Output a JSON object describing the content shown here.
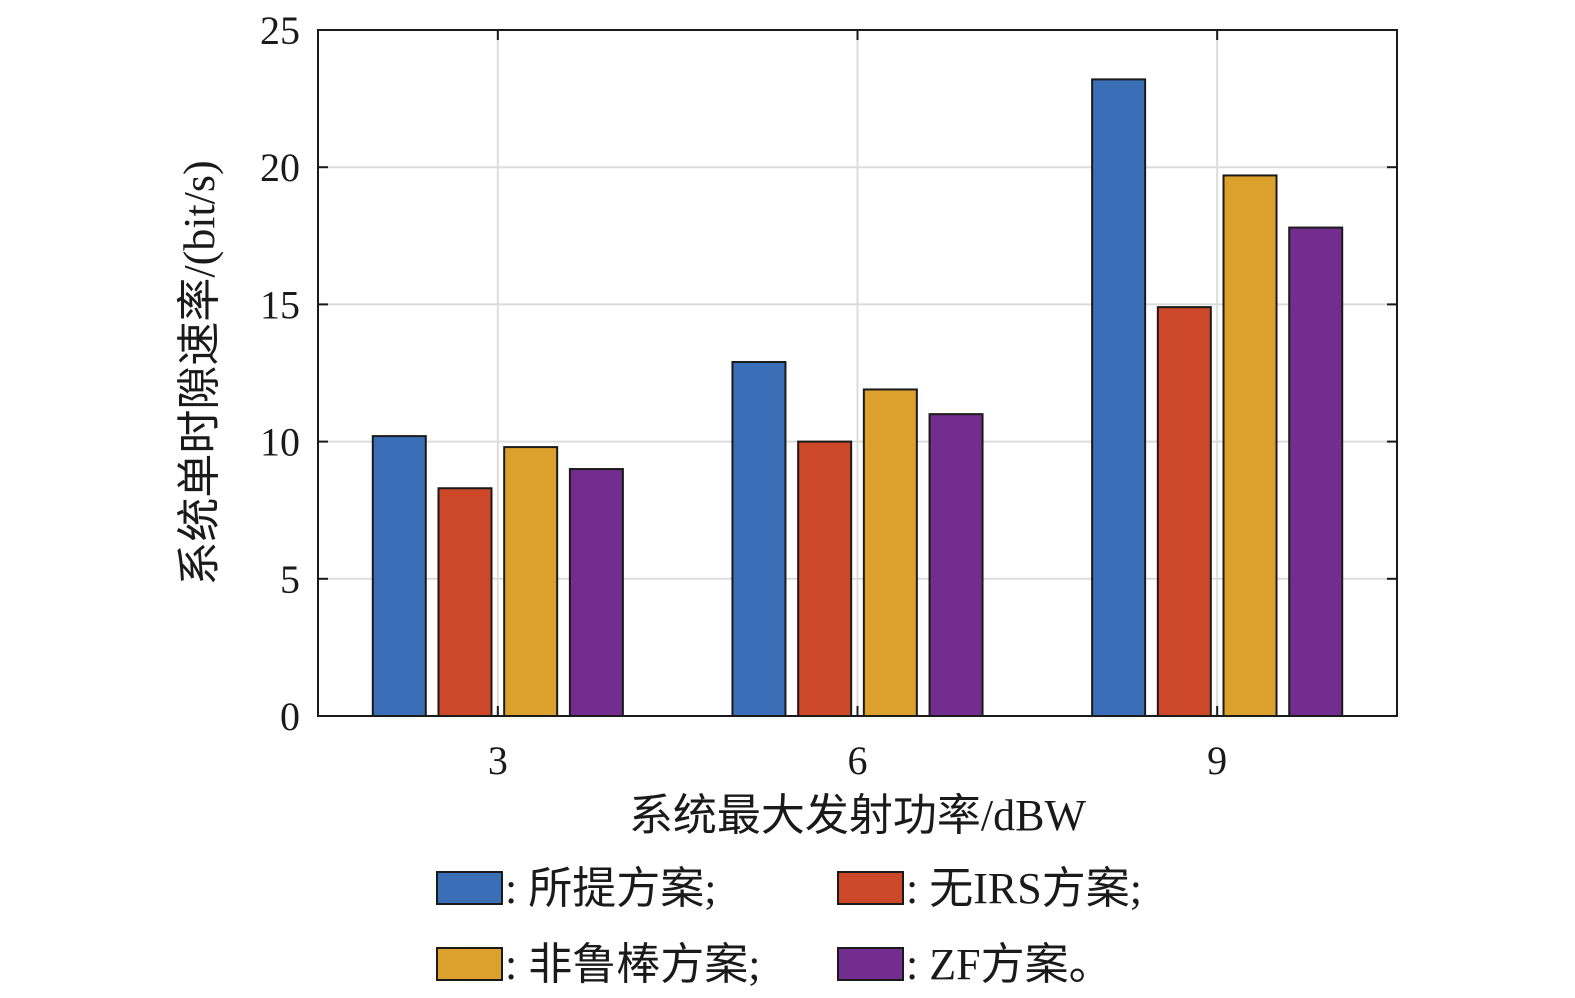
{
  "chart_data": {
    "type": "bar",
    "categories": [
      "3",
      "6",
      "9"
    ],
    "series": [
      {
        "name": ": 所提方案;",
        "color": "#3a6fb8",
        "values": [
          10.2,
          12.9,
          23.2
        ]
      },
      {
        "name": ": 无IRS方案;",
        "color": "#cd4828",
        "values": [
          8.3,
          10.0,
          14.9
        ]
      },
      {
        "name": ": 非鲁棒方案;",
        "color": "#dca12d",
        "values": [
          9.8,
          11.9,
          19.7
        ]
      },
      {
        "name": ": ZF方案。",
        "color": "#722d8e",
        "values": [
          9.0,
          11.0,
          17.8
        ]
      }
    ],
    "xlabel": "系统最大发射功率/dBW",
    "ylabel": "系统单时隙速率/(bit/s)",
    "ylim": [
      0,
      25
    ],
    "yticks": [
      0,
      5,
      10,
      15,
      20,
      25
    ],
    "grid": true,
    "legend_position": "bottom"
  }
}
